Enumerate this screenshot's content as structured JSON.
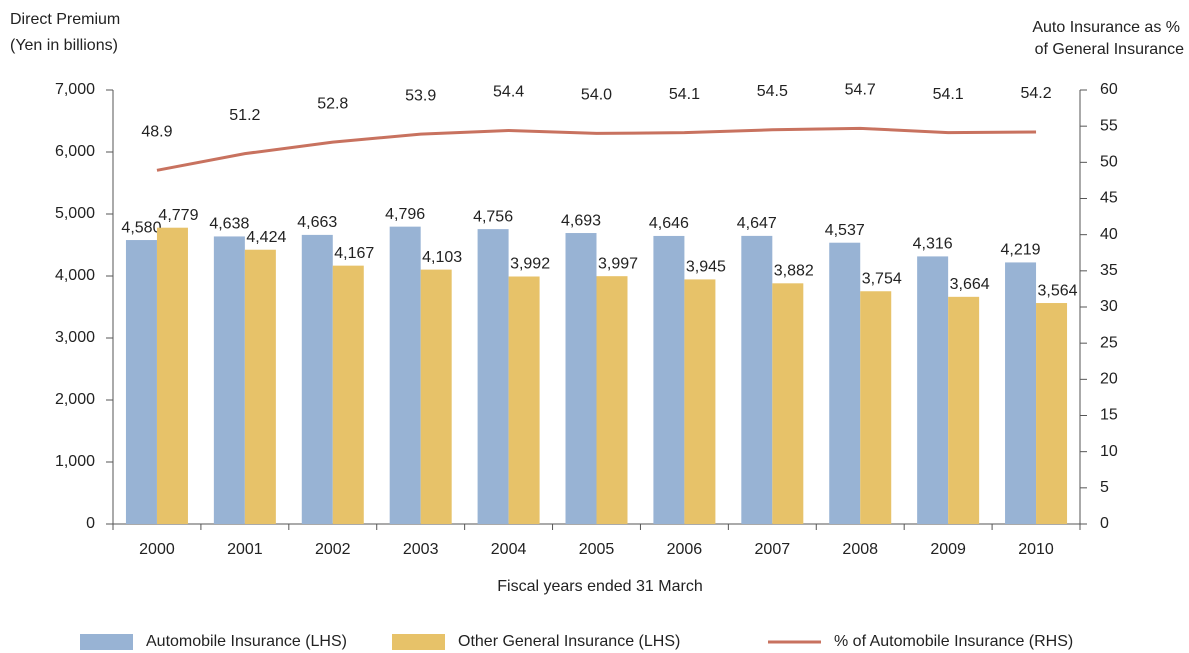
{
  "chart_data": {
    "type": "bar-line",
    "y_label": [
      "Direct Premium",
      "(Yen in billions)"
    ],
    "y2_label": [
      "Auto Insurance as %",
      "of General Insurance"
    ],
    "x_label": "Fiscal years ended 31 March",
    "categories": [
      "2000",
      "2001",
      "2002",
      "2003",
      "2004",
      "2005",
      "2006",
      "2007",
      "2008",
      "2009",
      "2010"
    ],
    "series": [
      {
        "name": "Automobile Insurance (LHS)",
        "type": "bar",
        "color": "#98b3d4",
        "values": [
          4580,
          4638,
          4663,
          4796,
          4756,
          4693,
          4646,
          4647,
          4537,
          4316,
          4219
        ],
        "value_labels": [
          "4,580",
          "4,638",
          "4,663",
          "4,796",
          "4,756",
          "4,693",
          "4,646",
          "4,647",
          "4,537",
          "4,316",
          "4,219"
        ]
      },
      {
        "name": "Other General Insurance (LHS)",
        "type": "bar",
        "color": "#e7c269",
        "values": [
          4779,
          4424,
          4167,
          4103,
          3992,
          3997,
          3945,
          3882,
          3754,
          3664,
          3564
        ],
        "value_labels": [
          "4,779",
          "4,424",
          "4,167",
          "4,103",
          "3,992",
          "3,997",
          "3,945",
          "3,882",
          "3,754",
          "3,664",
          "3,564"
        ]
      },
      {
        "name": "% of Automobile Insurance (RHS)",
        "type": "line",
        "axis": "y2",
        "color": "#c8725f",
        "values": [
          48.9,
          51.2,
          52.8,
          53.9,
          54.4,
          54.0,
          54.1,
          54.5,
          54.7,
          54.1,
          54.2
        ],
        "value_labels": [
          "48.9",
          "51.2",
          "52.8",
          "53.9",
          "54.4",
          "54.0",
          "54.1",
          "54.5",
          "54.7",
          "54.1",
          "54.2"
        ]
      }
    ],
    "ylim": [
      0,
      7000
    ],
    "yticks": [
      0,
      {
        "value": 1000,
        "label": "1,000"
      },
      {
        "value": 2000,
        "label": "2,000"
      },
      {
        "value": 3000,
        "label": "3,000"
      },
      {
        "value": 4000,
        "label": "4,000"
      },
      {
        "value": 5000,
        "label": "5,000"
      },
      {
        "value": 6000,
        "label": "6,000"
      },
      {
        "value": 7000,
        "label": "7,000"
      }
    ],
    "y2lim": [
      0,
      60
    ],
    "y2ticks": [
      0,
      5,
      10,
      15,
      20,
      25,
      30,
      35,
      40,
      45,
      50,
      55,
      60
    ],
    "legend": "bottom"
  }
}
